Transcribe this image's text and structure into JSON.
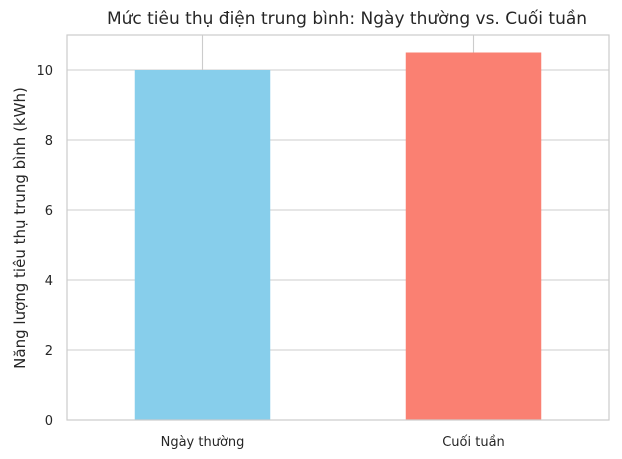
{
  "chart_data": {
    "type": "bar",
    "title": "Mức tiêu thụ điện trung bình: Ngày thường vs. Cuối tuần",
    "xlabel": "",
    "ylabel": "Năng lượng tiêu thụ trung bình (kWh)",
    "categories": [
      "Ngày thường",
      "Cuối tuần"
    ],
    "values": [
      10.0,
      10.5
    ],
    "colors": [
      "#87CEEB",
      "#FA8072"
    ],
    "ylim": [
      0,
      11.0
    ],
    "yticks": [
      "0",
      "2",
      "4",
      "6",
      "8",
      "10"
    ],
    "grid": true,
    "legend": "none"
  }
}
